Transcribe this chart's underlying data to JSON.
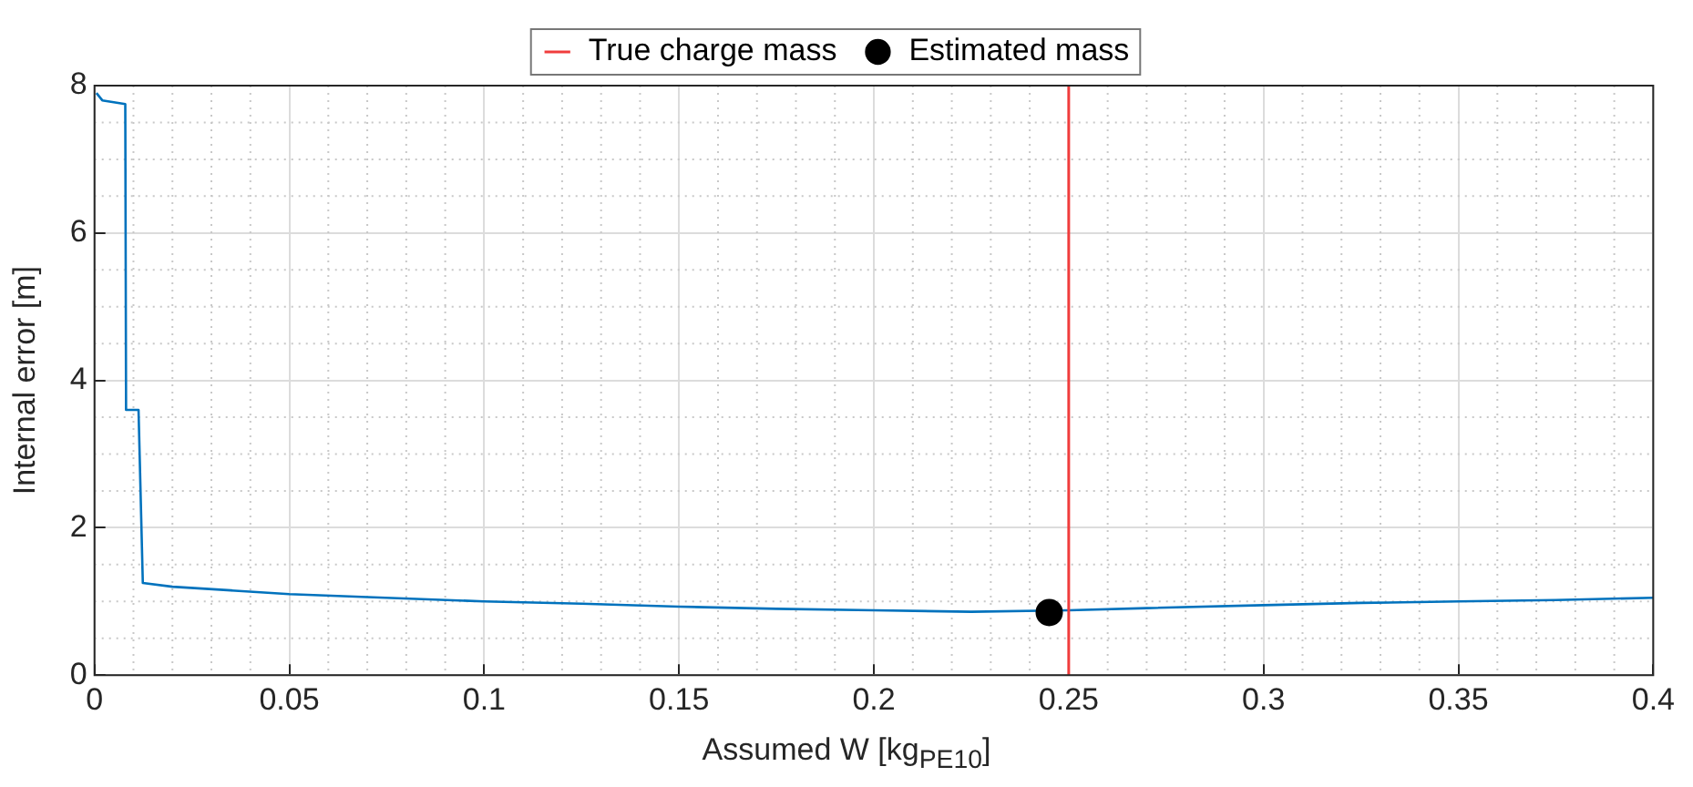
{
  "chart_data": {
    "type": "line",
    "xlabel": "Assumed W [kg$_{PE10}$]",
    "ylabel": "Internal error [m]",
    "xlim": [
      0,
      0.4
    ],
    "xticks": [
      0,
      0.05,
      0.1,
      0.15,
      0.2,
      0.25,
      0.3,
      0.35,
      0.4
    ],
    "ylim": [
      0,
      8
    ],
    "yticks": [
      0,
      2,
      4,
      6,
      8
    ],
    "grid": true,
    "legend": "top",
    "series": [
      {
        "color": "#0072bd",
        "x": [
          0.0005,
          0.002,
          0.0079,
          0.0081,
          0.0113,
          0.0124,
          0.02,
          0.035,
          0.05,
          0.07,
          0.1,
          0.125,
          0.15,
          0.175,
          0.2,
          0.225,
          0.25,
          0.27,
          0.3,
          0.325,
          0.35,
          0.375,
          0.4
        ],
        "values": [
          7.9,
          7.8,
          7.75,
          3.6,
          3.6,
          1.25,
          1.2,
          1.15,
          1.1,
          1.06,
          1.0,
          0.97,
          0.93,
          0.9,
          0.88,
          0.86,
          0.88,
          0.91,
          0.95,
          0.98,
          1.0,
          1.02,
          1.05
        ]
      },
      {
        "type": "scatter",
        "name": "Estimated mass",
        "color": "#000000",
        "marker": "circle",
        "x": [
          0.245
        ],
        "values": [
          0.85
        ]
      }
    ],
    "ref_lines": [
      {
        "axis": "x",
        "value": 0.25,
        "label": "True charge mass",
        "color": "#f03c3c"
      }
    ]
  }
}
